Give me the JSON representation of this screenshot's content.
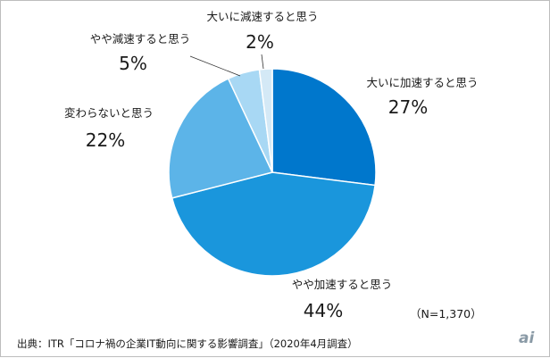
{
  "chart_data": {
    "type": "pie",
    "categories": [
      "大いに加速すると思う",
      "やや加速すると思う",
      "変わらないと思う",
      "やや減速すると思う",
      "大いに減速すると思う"
    ],
    "values": [
      27,
      44,
      22,
      5,
      2
    ],
    "value_labels": [
      "27%",
      "44%",
      "22%",
      "5%",
      "2%"
    ],
    "colors": [
      "#0077cc",
      "#1a96dc",
      "#5cb4e8",
      "#a8d8f4",
      "#d4e9f6"
    ],
    "start_angle_deg": 0,
    "direction": "clockwise"
  },
  "note": "（N=1,370）",
  "source": "出典：ITR「コロナ禍の企業IT動向に関する影響調査」（2020年4月調査）",
  "logo": {
    "text": "ai",
    "color": "#8a9aa6"
  }
}
